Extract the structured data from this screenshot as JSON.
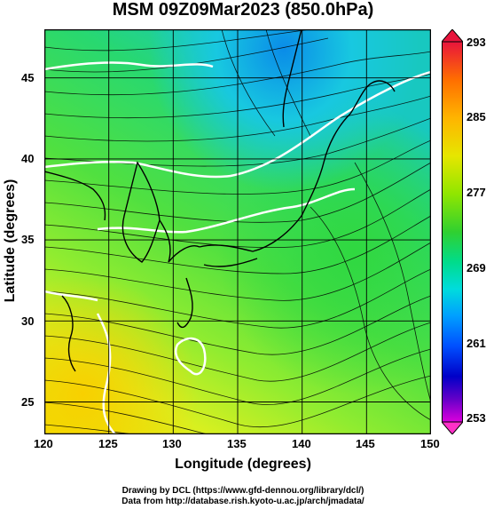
{
  "title": "MSM 09Z09Mar2023 (850.0hPa)",
  "xlabel": "Longitude (degrees)",
  "ylabel": "Latitude  (degrees)",
  "x_ticks": [
    "120",
    "125",
    "130",
    "135",
    "140",
    "145",
    "150"
  ],
  "y_ticks": [
    "45",
    "40",
    "35",
    "30",
    "25"
  ],
  "colorbar": {
    "ticks": [
      "293",
      "285",
      "277",
      "269",
      "261",
      "253"
    ],
    "colors": [
      "#e8143c",
      "#ff7800",
      "#ffb400",
      "#e6e600",
      "#a0e600",
      "#30d030",
      "#00dc8c",
      "#00dcdc",
      "#00a0ff",
      "#0050ff",
      "#0000c8",
      "#6400c8",
      "#dc00dc"
    ]
  },
  "credits": {
    "line1": "Drawing by DCL (https://www.gfd-dennou.org/library/dcl/)",
    "line2": "Data from http://database.rish.kyoto-u.ac.jp/arch/jmadata/"
  },
  "chart_data": {
    "type": "heatmap",
    "variable": "temperature with streamlines",
    "xlim": [
      120,
      150
    ],
    "ylim": [
      23,
      48
    ],
    "grid": true,
    "colorbar_range": [
      253,
      293
    ]
  }
}
